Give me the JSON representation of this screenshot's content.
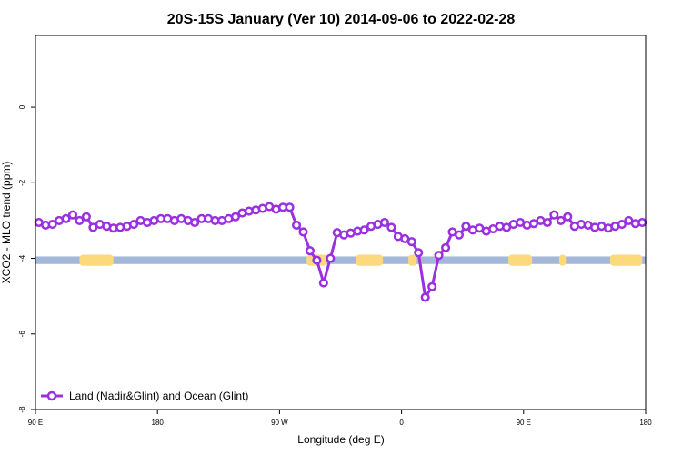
{
  "chart_data": {
    "type": "line",
    "title": "20S-15S January (Ver 10)   2014-09-06 to 2022-02-28",
    "xlabel": "Longitude (deg E)",
    "ylabel": "XCO2 - MLO trend (ppm)",
    "xlim": [
      90,
      450
    ],
    "ylim": [
      -8,
      1.9
    ],
    "x_ticks": [
      {
        "value": 90,
        "label": "90 E"
      },
      {
        "value": 162,
        "label": "180"
      },
      {
        "value": 234,
        "label": "90 W"
      },
      {
        "value": 306,
        "label": "0"
      },
      {
        "value": 378,
        "label": "90 E"
      },
      {
        "value": 450,
        "label": "180"
      }
    ],
    "y_ticks": [
      {
        "value": 0,
        "label": "0"
      },
      {
        "value": -2,
        "label": "-2"
      },
      {
        "value": -4,
        "label": "-4"
      },
      {
        "value": -6,
        "label": "-6"
      },
      {
        "value": -8,
        "label": "-8"
      }
    ],
    "grid": false,
    "legend_position": "bottom-left",
    "colors": {
      "series": "#9b30e0",
      "land": "#fcd97a",
      "ocean": "#a3b8d8"
    },
    "surface_band": {
      "y_top": -3.95,
      "y_bottom": -4.15,
      "land_ranges": [
        [
          116,
          136
        ],
        [
          250,
          262
        ],
        [
          279,
          295
        ],
        [
          310,
          315
        ],
        [
          369,
          383
        ],
        [
          399,
          403
        ],
        [
          429,
          448
        ]
      ]
    },
    "series": [
      {
        "name": "Land (Nadir&Glint) and Ocean (Glint)",
        "x": [
          92,
          96,
          100,
          104,
          108,
          112,
          116,
          120,
          124,
          128,
          132,
          136,
          140,
          144,
          148,
          152,
          156,
          160,
          164,
          168,
          172,
          176,
          180,
          184,
          188,
          192,
          196,
          200,
          204,
          208,
          212,
          216,
          220,
          224,
          228,
          232,
          236,
          240,
          244,
          248,
          252,
          256,
          260,
          264,
          268,
          272,
          276,
          280,
          284,
          288,
          292,
          296,
          300,
          304,
          308,
          312,
          316,
          320,
          324,
          328,
          332,
          336,
          340,
          344,
          348,
          352,
          356,
          360,
          364,
          368,
          372,
          376,
          380,
          384,
          388,
          392,
          396,
          400,
          404,
          408,
          412,
          416,
          420,
          424,
          428,
          432,
          436,
          440,
          444,
          448
        ],
        "y": [
          -3.05,
          -3.12,
          -3.1,
          -3.0,
          -2.95,
          -2.85,
          -3.0,
          -2.9,
          -3.18,
          -3.1,
          -3.15,
          -3.2,
          -3.18,
          -3.15,
          -3.1,
          -3.0,
          -3.05,
          -3.0,
          -2.95,
          -2.95,
          -3.0,
          -2.95,
          -3.0,
          -3.05,
          -2.95,
          -2.95,
          -3.0,
          -3.0,
          -2.95,
          -2.9,
          -2.8,
          -2.75,
          -2.72,
          -2.68,
          -2.63,
          -2.7,
          -2.65,
          -2.65,
          -3.12,
          -3.3,
          -3.8,
          -4.05,
          -4.65,
          -4.0,
          -3.32,
          -3.38,
          -3.33,
          -3.28,
          -3.25,
          -3.15,
          -3.1,
          -3.05,
          -3.18,
          -3.42,
          -3.48,
          -3.56,
          -3.85,
          -5.03,
          -4.75,
          -3.92,
          -3.72,
          -3.3,
          -3.38,
          -3.15,
          -3.25,
          -3.2,
          -3.28,
          -3.22,
          -3.15,
          -3.18,
          -3.1,
          -3.05,
          -3.12,
          -3.08,
          -3.0,
          -3.05,
          -2.85,
          -3.0,
          -2.9,
          -3.15,
          -3.1,
          -3.12,
          -3.18,
          -3.15,
          -3.2,
          -3.15,
          -3.1,
          -3.0,
          -3.08,
          -3.05
        ]
      }
    ]
  }
}
